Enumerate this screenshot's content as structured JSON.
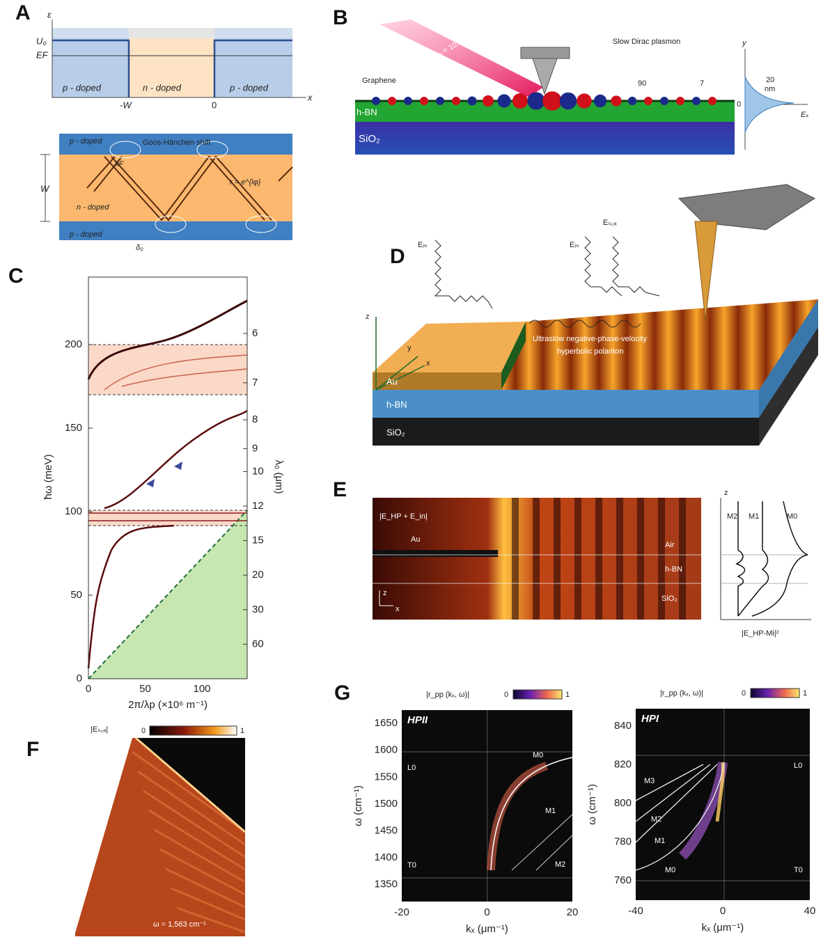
{
  "panel_a": {
    "label": "A",
    "axis_e": "ε",
    "u0": "U₀",
    "ef": "EF",
    "axis_x": "x",
    "minus_w": "-W",
    "zero": "0",
    "regions": [
      "p - doped",
      "n - doped",
      "p - doped"
    ],
    "bottom": {
      "top_band": "p - doped",
      "shift": "Goos-Hänchen shift",
      "middle": "n - doped",
      "bottom_band": "p - doped",
      "width": "W",
      "delta": "δ₀",
      "kf": "kF",
      "phase": "r = e^{iφ}"
    }
  },
  "panel_b": {
    "label": "B",
    "wavelength": "λ₀ = 10.6 μm",
    "graphene": "Graphene",
    "plasmon": "Slow Dirac plasmon",
    "hbn": "h-BN",
    "sio2": "SiO₂",
    "spacing": "90",
    "thickness": "7",
    "inset": {
      "y": "y",
      "scale": "20",
      "unit": "nm",
      "zero": "0",
      "ex": "Eₓ"
    }
  },
  "panel_c": {
    "label": "C",
    "yticks": [
      "0",
      "50",
      "100",
      "150",
      "200"
    ],
    "xticks": [
      "0",
      "50",
      "100"
    ],
    "right_ticks": [
      "6",
      "7",
      "8",
      "9",
      "10",
      "12",
      "15",
      "20",
      "30",
      "60"
    ],
    "ylabel": "ħω (meV)",
    "xlabel": "2π/λp (×10⁶ m⁻¹)",
    "right_label": "λ₀ (μm)"
  },
  "panel_d": {
    "label": "D",
    "e_in_1": "Eᵢₙ",
    "e_in_2": "Eᵢₙ",
    "e_sca": "Eₛ꜀ₐ",
    "z": "z",
    "y": "y",
    "x": "x",
    "caption_1": "Ultraslow negative-phase-velocity",
    "caption_2": "hyperbolic polariton",
    "au": "Au",
    "hbn": "h-BN",
    "sio2": "SiO₂"
  },
  "panel_e": {
    "label": "E",
    "field": "|E_HP + E_in|",
    "au": "Au",
    "air": "Air",
    "hbn": "h-BN",
    "sio2": "SiO₂",
    "z": "z",
    "x": "x",
    "inset": {
      "z": "z",
      "modes": [
        "M2",
        "M1",
        "M0"
      ],
      "xlabel": "|E_HP-Mi|²"
    }
  },
  "panel_f": {
    "label": "F",
    "field": "|Eₛ꜀ₐ|",
    "cb_min": "0",
    "cb_max": "1",
    "omega": "ω = 1,563 cm⁻¹"
  },
  "panel_g": {
    "label": "G",
    "left": {
      "cb_label": "|r_pp (kₓ, ω)|",
      "cb_min": "0",
      "cb_max": "1",
      "title": "HPII",
      "yticks": [
        "1350",
        "1400",
        "1450",
        "1500",
        "1550",
        "1600",
        "1650"
      ],
      "xticks": [
        "-20",
        "0",
        "20"
      ],
      "ylabel": "ω (cm⁻¹)",
      "xlabel": "kₓ (μm⁻¹)",
      "l0": "L0",
      "t0": "T0",
      "modes": [
        "M0",
        "M1",
        "M2"
      ]
    },
    "right": {
      "cb_label": "|r_pp (kₓ, ω)|",
      "cb_min": "0",
      "cb_max": "1",
      "title": "HPI",
      "yticks": [
        "760",
        "780",
        "800",
        "820",
        "840"
      ],
      "xticks": [
        "-40",
        "0",
        "40"
      ],
      "ylabel": "ω (cm⁻¹)",
      "xlabel": "kₓ (μm⁻¹)",
      "l0": "L0",
      "t0": "T0",
      "modes": [
        "M0",
        "M1",
        "M2",
        "M3"
      ]
    }
  }
}
